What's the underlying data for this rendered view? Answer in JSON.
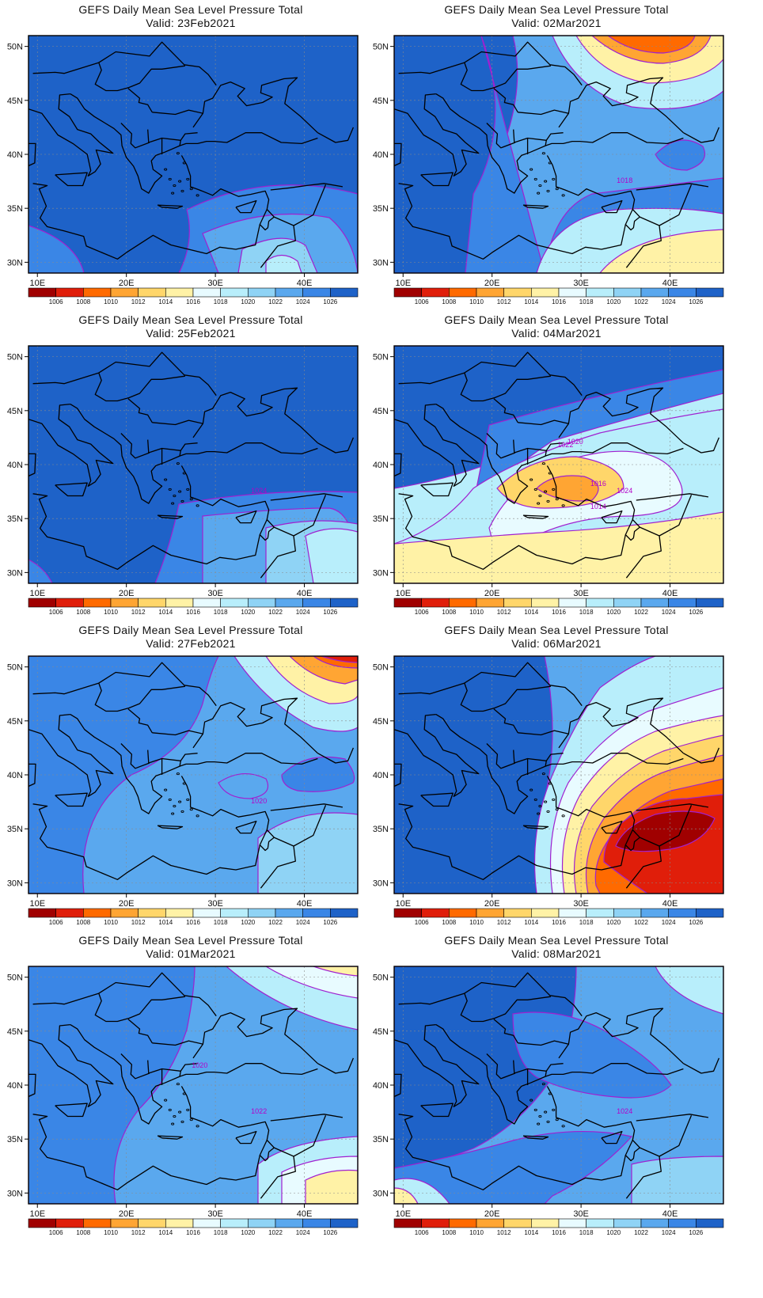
{
  "panels": [
    {
      "title": "GEFS Daily Mean Sea Level Pressure Total",
      "valid": "Valid: 23Feb2021",
      "pattern": "high-northwest",
      "contour_labels": []
    },
    {
      "title": "GEFS Daily Mean Sea Level Pressure Total",
      "valid": "Valid: 02Mar2021",
      "pattern": "low-north",
      "contour_labels": [
        "1018"
      ]
    },
    {
      "title": "GEFS Daily Mean Sea Level Pressure Total",
      "valid": "Valid: 25Feb2021",
      "pattern": "high-broad",
      "contour_labels": [
        "1024"
      ]
    },
    {
      "title": "GEFS Daily Mean Sea Level Pressure Total",
      "valid": "Valid: 04Mar2021",
      "pattern": "low-aegean",
      "contour_labels": [
        "1024",
        "1022",
        "1020",
        "1016",
        "1014"
      ]
    },
    {
      "title": "GEFS Daily Mean Sea Level Pressure Total",
      "valid": "Valid: 27Feb2021",
      "pattern": "low-northeast",
      "contour_labels": [
        "1020"
      ]
    },
    {
      "title": "GEFS Daily Mean Sea Level Pressure Total",
      "valid": "Valid: 06Mar2021",
      "pattern": "low-east-deep",
      "contour_labels": []
    },
    {
      "title": "GEFS Daily Mean Sea Level Pressure Total",
      "valid": "Valid: 01Mar2021",
      "pattern": "low-southeast",
      "contour_labels": [
        "1022",
        "1020"
      ]
    },
    {
      "title": "GEFS Daily Mean Sea Level Pressure Total",
      "valid": "Valid: 08Mar2021",
      "pattern": "high-central",
      "contour_labels": [
        "1024"
      ]
    }
  ],
  "axes": {
    "lat_labels": [
      "50N",
      "45N",
      "40N",
      "35N",
      "30N"
    ],
    "lon_labels": [
      "10E",
      "20E",
      "30E",
      "40E"
    ]
  },
  "colorbar": {
    "labels": [
      "1006",
      "1008",
      "1010",
      "1012",
      "1014",
      "1016",
      "1018",
      "1020",
      "1022",
      "1024",
      "1026"
    ],
    "colors": [
      "#a00000",
      "#e01e0a",
      "#ff6a00",
      "#ffa533",
      "#ffd66a",
      "#fff2a6",
      "#e8fbff",
      "#b8eefb",
      "#8fd3f5",
      "#5aa8ee",
      "#3a86e6",
      "#1e62c8"
    ]
  },
  "contour_color": "#a020d0"
}
